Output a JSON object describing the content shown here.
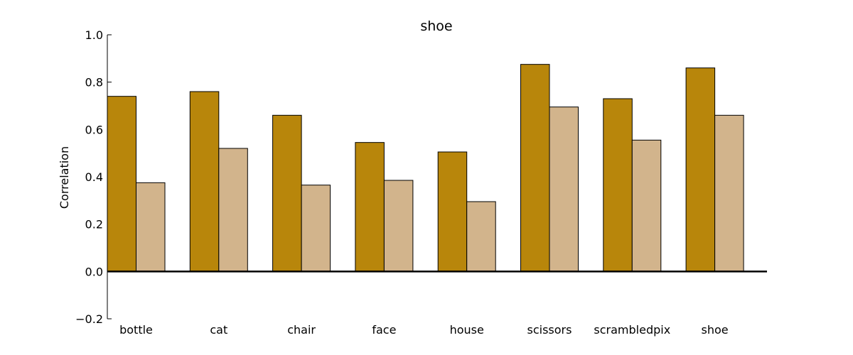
{
  "chart_data": {
    "type": "bar",
    "title": "shoe",
    "xlabel": "",
    "ylabel": "Correlation",
    "ylim": [
      -0.2,
      1.0
    ],
    "yticks": [
      -0.2,
      0.0,
      0.2,
      0.4,
      0.6,
      0.8,
      1.0
    ],
    "ytick_labels": [
      "−0.2",
      "0.0",
      "0.2",
      "0.4",
      "0.6",
      "0.8",
      "1.0"
    ],
    "categories": [
      "bottle",
      "cat",
      "chair",
      "face",
      "house",
      "scissors",
      "scrambledpix",
      "shoe"
    ],
    "series": [
      {
        "values": [
          0.74,
          0.76,
          0.66,
          0.545,
          0.505,
          0.875,
          0.73,
          0.86
        ],
        "color": "#b8860b"
      },
      {
        "values": [
          0.375,
          0.52,
          0.365,
          0.385,
          0.295,
          0.695,
          0.555,
          0.66
        ],
        "color": "#d2b48c"
      }
    ],
    "grid": false,
    "legend": "none"
  }
}
